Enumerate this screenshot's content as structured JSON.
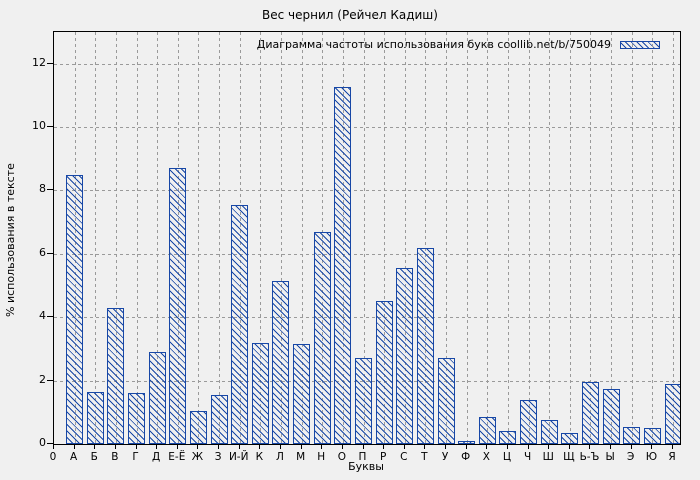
{
  "title": "Вес чернил (Рейчел Кадиш)",
  "legend": {
    "label": "Диаграмма частоты использования букв coollib.net/b/750049"
  },
  "axes": {
    "y_label": "% использования в тексте",
    "x_label": "Буквы",
    "y_ticks": [
      0,
      2,
      4,
      6,
      8,
      10,
      12
    ]
  },
  "colors": {
    "bar_blue": "#1747a6",
    "grid_gray": "#9a9a9a",
    "border_black": "#000000",
    "background": "#f0f0f0"
  },
  "chart_data": {
    "type": "bar",
    "title": "Вес чернил (Рейчел Кадиш)",
    "xlabel": "Буквы",
    "ylabel": "% использования в тексте",
    "ylim": [
      0,
      13
    ],
    "grid": true,
    "legend_position": "top-right-inside",
    "legend_label": "Диаграмма частоты использования букв coollib.net/b/750049",
    "categories": [
      "0",
      "А",
      "Б",
      "В",
      "Г",
      "Д",
      "Е-Ё",
      "Ж",
      "З",
      "И-Й",
      "К",
      "Л",
      "М",
      "Н",
      "О",
      "П",
      "Р",
      "С",
      "Т",
      "У",
      "Ф",
      "Х",
      "Ц",
      "Ч",
      "Ш",
      "Щ",
      "Ь-Ъ",
      "Ы",
      "Э",
      "Ю",
      "Я"
    ],
    "values": [
      0,
      8.5,
      1.65,
      4.3,
      1.6,
      2.9,
      8.7,
      1.05,
      1.55,
      7.55,
      3.2,
      5.15,
      3.15,
      6.7,
      11.25,
      2.7,
      4.5,
      5.55,
      6.2,
      2.7,
      0.1,
      0.85,
      0.4,
      1.4,
      0.75,
      0.35,
      1.95,
      1.75,
      0.55,
      0.5,
      1.9
    ]
  }
}
